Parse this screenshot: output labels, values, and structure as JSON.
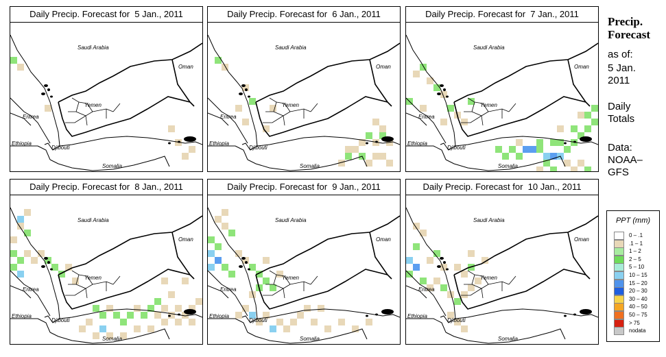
{
  "panels": [
    {
      "title": "Daily Precip. Forecast for  5 Jan., 2011",
      "cells": [
        [
          0,
          5,
          "#8fe47a"
        ],
        [
          1,
          6,
          "#e8d8b8"
        ],
        [
          5,
          12,
          "#e8d8b8"
        ],
        [
          24,
          17,
          "#e8d8b8"
        ],
        [
          26,
          18,
          "#e8d8b8"
        ],
        [
          25,
          19,
          "#e8d8b8"
        ],
        [
          23,
          15,
          "#e8d8b8"
        ]
      ]
    },
    {
      "title": "Daily Precip. Forecast for  6 Jan., 2011",
      "cells": [
        [
          1,
          5,
          "#8fe47a"
        ],
        [
          2,
          6,
          "#e8d8b8"
        ],
        [
          5,
          9,
          "#e8d8b8"
        ],
        [
          6,
          11,
          "#8fe47a"
        ],
        [
          4,
          12,
          "#e8d8b8"
        ],
        [
          5,
          14,
          "#e8d8b8"
        ],
        [
          8,
          15,
          "#e8d8b8"
        ],
        [
          9,
          12,
          "#e8d8b8"
        ],
        [
          20,
          18,
          "#e8d8b8"
        ],
        [
          21,
          18,
          "#e8d8b8"
        ],
        [
          22,
          17,
          "#e8d8b8"
        ],
        [
          23,
          16,
          "#8fe47a"
        ],
        [
          24,
          17,
          "#e8d8b8"
        ],
        [
          25,
          16,
          "#8fe47a"
        ],
        [
          26,
          17,
          "#e8d8b8"
        ],
        [
          22,
          19,
          "#8fe47a"
        ],
        [
          23,
          20,
          "#e8d8b8"
        ],
        [
          24,
          19,
          "#e8d8b8"
        ],
        [
          25,
          19,
          "#e8d8b8"
        ],
        [
          26,
          20,
          "#e8d8b8"
        ],
        [
          24,
          14,
          "#e8d8b8"
        ],
        [
          25,
          15,
          "#e8d8b8"
        ],
        [
          19,
          20,
          "#e8d8b8"
        ],
        [
          20,
          19,
          "#8fe47a"
        ]
      ]
    },
    {
      "title": "Daily Precip. Forecast for  7 Jan., 2011",
      "cells": [
        [
          1,
          7,
          "#e8d8b8"
        ],
        [
          2,
          6,
          "#8fe47a"
        ],
        [
          3,
          8,
          "#e8d8b8"
        ],
        [
          4,
          9,
          "#8fe47a"
        ],
        [
          0,
          11,
          "#8fe47a"
        ],
        [
          2,
          12,
          "#e8d8b8"
        ],
        [
          5,
          10,
          "#e8d8b8"
        ],
        [
          6,
          12,
          "#8fe47a"
        ],
        [
          7,
          13,
          "#e8d8b8"
        ],
        [
          8,
          14,
          "#e8d8b8"
        ],
        [
          5,
          14,
          "#e8d8b8"
        ],
        [
          9,
          11,
          "#8fe47a"
        ],
        [
          13,
          18,
          "#8fe47a"
        ],
        [
          14,
          19,
          "#8fe47a"
        ],
        [
          15,
          18,
          "#8fe47a"
        ],
        [
          16,
          19,
          "#8fe47a"
        ],
        [
          17,
          18,
          "#5b9ef0"
        ],
        [
          18,
          18,
          "#5b9ef0"
        ],
        [
          19,
          18,
          "#8fe47a"
        ],
        [
          20,
          19,
          "#8ad0f0"
        ],
        [
          21,
          19,
          "#5b9ef0"
        ],
        [
          22,
          19,
          "#8ad0f0"
        ],
        [
          23,
          18,
          "#8fe47a"
        ],
        [
          24,
          17,
          "#8fe47a"
        ],
        [
          25,
          16,
          "#8fe47a"
        ],
        [
          26,
          15,
          "#8fe47a"
        ],
        [
          27,
          14,
          "#8fe47a"
        ],
        [
          26,
          13,
          "#8fe47a"
        ],
        [
          27,
          12,
          "#8fe47a"
        ],
        [
          24,
          15,
          "#8fe47a"
        ],
        [
          22,
          17,
          "#8fe47a"
        ],
        [
          21,
          17,
          "#8fe47a"
        ],
        [
          19,
          17,
          "#8fe47a"
        ],
        [
          20,
          20,
          "#8fe47a"
        ],
        [
          21,
          21,
          "#8fe47a"
        ],
        [
          19,
          21,
          "#e8d8b8"
        ],
        [
          23,
          20,
          "#e8d8b8"
        ],
        [
          25,
          20,
          "#e8d8b8"
        ],
        [
          26,
          21,
          "#8fe47a"
        ],
        [
          24,
          21,
          "#e8d8b8"
        ],
        [
          22,
          15,
          "#e8d8b8"
        ],
        [
          25,
          13,
          "#e8d8b8"
        ],
        [
          16,
          17,
          "#e8d8b8"
        ]
      ]
    },
    {
      "title": "Daily Precip. Forecast for  8 Jan., 2011",
      "cells": [
        [
          1,
          3,
          "#8ad0f0"
        ],
        [
          1,
          4,
          "#e8d8b8"
        ],
        [
          2,
          5,
          "#8fe47a"
        ],
        [
          0,
          6,
          "#e8d8b8"
        ],
        [
          0,
          8,
          "#8fe47a"
        ],
        [
          1,
          9,
          "#8fe47a"
        ],
        [
          0,
          10,
          "#8fe47a"
        ],
        [
          1,
          11,
          "#8ad0f0"
        ],
        [
          2,
          8,
          "#e8d8b8"
        ],
        [
          3,
          9,
          "#e8d8b8"
        ],
        [
          4,
          8,
          "#e8d8b8"
        ],
        [
          5,
          9,
          "#8fe47a"
        ],
        [
          6,
          10,
          "#8fe47a"
        ],
        [
          7,
          11,
          "#8fe47a"
        ],
        [
          8,
          10,
          "#e8d8b8"
        ],
        [
          9,
          12,
          "#e8d8b8"
        ],
        [
          2,
          2,
          "#e8d8b8"
        ],
        [
          12,
          16,
          "#8fe47a"
        ],
        [
          13,
          17,
          "#8fe47a"
        ],
        [
          14,
          16,
          "#e8d8b8"
        ],
        [
          15,
          17,
          "#8fe47a"
        ],
        [
          16,
          18,
          "#8fe47a"
        ],
        [
          17,
          17,
          "#8fe47a"
        ],
        [
          18,
          16,
          "#e8d8b8"
        ],
        [
          19,
          17,
          "#8fe47a"
        ],
        [
          20,
          16,
          "#8fe47a"
        ],
        [
          21,
          17,
          "#e8d8b8"
        ],
        [
          22,
          16,
          "#e8d8b8"
        ],
        [
          23,
          17,
          "#e8d8b8"
        ],
        [
          24,
          16,
          "#e8d8b8"
        ],
        [
          25,
          17,
          "#e8d8b8"
        ],
        [
          26,
          16,
          "#e8d8b8"
        ],
        [
          27,
          15,
          "#e8d8b8"
        ],
        [
          11,
          18,
          "#e8d8b8"
        ],
        [
          10,
          19,
          "#e8d8b8"
        ],
        [
          12,
          20,
          "#e8d8b8"
        ],
        [
          13,
          19,
          "#8ad0f0"
        ],
        [
          14,
          20,
          "#e8d8b8"
        ],
        [
          16,
          20,
          "#e8d8b8"
        ],
        [
          18,
          19,
          "#e8d8b8"
        ],
        [
          20,
          19,
          "#e8d8b8"
        ],
        [
          22,
          18,
          "#e8d8b8"
        ],
        [
          24,
          18,
          "#e8d8b8"
        ],
        [
          26,
          18,
          "#e8d8b8"
        ],
        [
          25,
          12,
          "#e8d8b8"
        ],
        [
          22,
          12,
          "#e8d8b8"
        ],
        [
          23,
          14,
          "#e8d8b8"
        ],
        [
          21,
          15,
          "#8fe47a"
        ]
      ]
    },
    {
      "title": "Daily Precip. Forecast for  9 Jan., 2011",
      "cells": [
        [
          1,
          3,
          "#e8d8b8"
        ],
        [
          2,
          4,
          "#e8d8b8"
        ],
        [
          3,
          5,
          "#8fe47a"
        ],
        [
          0,
          6,
          "#8fe47a"
        ],
        [
          1,
          7,
          "#8fe47a"
        ],
        [
          0,
          8,
          "#8ad0f0"
        ],
        [
          1,
          9,
          "#5b9ef0"
        ],
        [
          0,
          10,
          "#8ad0f0"
        ],
        [
          2,
          10,
          "#8fe47a"
        ],
        [
          3,
          11,
          "#8fe47a"
        ],
        [
          4,
          8,
          "#e8d8b8"
        ],
        [
          5,
          9,
          "#e8d8b8"
        ],
        [
          6,
          10,
          "#8fe47a"
        ],
        [
          7,
          11,
          "#8fe47a"
        ],
        [
          8,
          12,
          "#8fe47a"
        ],
        [
          9,
          13,
          "#8fe47a"
        ],
        [
          8,
          9,
          "#e8d8b8"
        ],
        [
          10,
          11,
          "#e8d8b8"
        ],
        [
          7,
          13,
          "#8fe47a"
        ],
        [
          6,
          14,
          "#e8d8b8"
        ],
        [
          5,
          16,
          "#e8d8b8"
        ],
        [
          4,
          17,
          "#e8d8b8"
        ],
        [
          6,
          17,
          "#8ad0f0"
        ],
        [
          7,
          18,
          "#e8d8b8"
        ],
        [
          8,
          17,
          "#e8d8b8"
        ],
        [
          9,
          19,
          "#8ad0f0"
        ],
        [
          10,
          18,
          "#e8d8b8"
        ],
        [
          11,
          19,
          "#e8d8b8"
        ],
        [
          12,
          18,
          "#e8d8b8"
        ],
        [
          13,
          17,
          "#e8d8b8"
        ],
        [
          15,
          18,
          "#e8d8b8"
        ],
        [
          17,
          19,
          "#e8d8b8"
        ],
        [
          19,
          18,
          "#e8d8b8"
        ],
        [
          21,
          19,
          "#e8d8b8"
        ],
        [
          23,
          18,
          "#e8d8b8"
        ],
        [
          14,
          16,
          "#e8d8b8"
        ],
        [
          16,
          16,
          "#e8d8b8"
        ],
        [
          2,
          2,
          "#e8d8b8"
        ]
      ]
    },
    {
      "title": "Daily Precip. Forecast for  10 Jan., 2011",
      "cells": [
        [
          1,
          4,
          "#e8d8b8"
        ],
        [
          2,
          5,
          "#e8d8b8"
        ],
        [
          1,
          7,
          "#8fe47a"
        ],
        [
          0,
          9,
          "#8ad0f0"
        ],
        [
          1,
          10,
          "#5b9ef0"
        ],
        [
          0,
          11,
          "#8fe47a"
        ],
        [
          2,
          12,
          "#8fe47a"
        ],
        [
          3,
          13,
          "#e8d8b8"
        ],
        [
          4,
          12,
          "#e8d8b8"
        ],
        [
          5,
          13,
          "#8fe47a"
        ],
        [
          6,
          14,
          "#e8d8b8"
        ],
        [
          7,
          15,
          "#8fe47a"
        ],
        [
          8,
          14,
          "#e8d8b8"
        ],
        [
          9,
          13,
          "#e8d8b8"
        ],
        [
          7,
          10,
          "#e8d8b8"
        ],
        [
          8,
          11,
          "#e8d8b8"
        ],
        [
          9,
          10,
          "#8fe47a"
        ],
        [
          10,
          12,
          "#e8d8b8"
        ],
        [
          6,
          17,
          "#e8d8b8"
        ],
        [
          7,
          18,
          "#e8d8b8"
        ],
        [
          8,
          19,
          "#e8d8b8"
        ],
        [
          5,
          10,
          "#e8d8b8"
        ],
        [
          4,
          8,
          "#8fe47a"
        ],
        [
          3,
          9,
          "#e8d8b8"
        ],
        [
          9,
          8,
          "#e8d8b8"
        ],
        [
          11,
          9,
          "#e8d8b8"
        ]
      ]
    }
  ],
  "map_labels": {
    "saudi": "Saudi Arabia",
    "oman": "Oman",
    "yemen": "Yemen",
    "eritrea": "Eritrea",
    "ethiopia": "Ethiopia",
    "djibouti": "Djibouti",
    "somalia": "Somalia"
  },
  "side": {
    "title_line1": "Precip.",
    "title_line2": "Forecast",
    "asof": "as of:",
    "date_line1": "5 Jan.",
    "date_line2": "2011",
    "totals_line1": "Daily",
    "totals_line2": "Totals",
    "data_line1": "Data:",
    "data_line2": "NOAA–",
    "data_line3": "GFS"
  },
  "legend": {
    "title": "PPT (mm)",
    "items": [
      {
        "label": "0 – .1",
        "color": "#ffffff"
      },
      {
        "label": ".1 – 1",
        "color": "#e8d8b8"
      },
      {
        "label": "1 – 2",
        "color": "#a8eca0"
      },
      {
        "label": "2 – 5",
        "color": "#6fdc5a"
      },
      {
        "label": "5 – 10",
        "color": "#a8ecd8"
      },
      {
        "label": "10 – 15",
        "color": "#8ad0f0"
      },
      {
        "label": "15 – 20",
        "color": "#4f93ec"
      },
      {
        "label": "20 – 30",
        "color": "#1f5fe0"
      },
      {
        "label": "30 – 40",
        "color": "#f7d44a"
      },
      {
        "label": "40 – 50",
        "color": "#f5a623"
      },
      {
        "label": "50 – 75",
        "color": "#f07020"
      },
      {
        "label": "> 75",
        "color": "#d62010"
      },
      {
        "label": "nodata",
        "color": "#c8c8c8"
      }
    ]
  }
}
